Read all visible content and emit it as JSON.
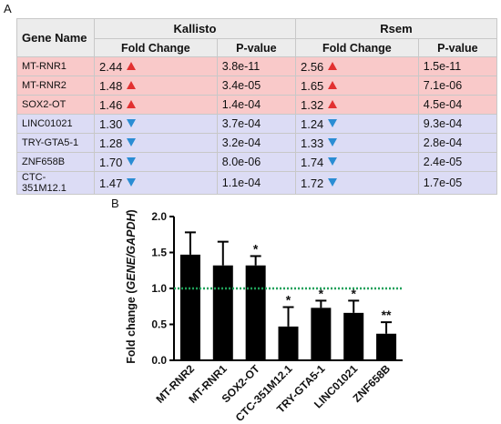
{
  "panel_a": {
    "label": "A",
    "headers": {
      "gene_name": "Gene Name",
      "group1": "Kallisto",
      "group2": "Rsem",
      "fold_change": "Fold Change",
      "p_value": "P-value"
    },
    "rows": [
      {
        "gene": "MT-RNR1",
        "k_fc": "2.44",
        "k_dir": "up",
        "k_p": "3.8e-11",
        "r_fc": "2.56",
        "r_dir": "up",
        "r_p": "1.5e-11"
      },
      {
        "gene": "MT-RNR2",
        "k_fc": "1.48",
        "k_dir": "up",
        "k_p": "3.4e-05",
        "r_fc": "1.65",
        "r_dir": "up",
        "r_p": "7.1e-06"
      },
      {
        "gene": "SOX2-OT",
        "k_fc": "1.46",
        "k_dir": "up",
        "k_p": "1.4e-04",
        "r_fc": "1.32",
        "r_dir": "up",
        "r_p": "4.5e-04"
      },
      {
        "gene": "LINC01021",
        "k_fc": "1.30",
        "k_dir": "down",
        "k_p": "3.7e-04",
        "r_fc": "1.24",
        "r_dir": "down",
        "r_p": "9.3e-04"
      },
      {
        "gene": "TRY-GTA5-1",
        "k_fc": "1.28",
        "k_dir": "down",
        "k_p": "3.2e-04",
        "r_fc": "1.33",
        "r_dir": "down",
        "r_p": "2.8e-04"
      },
      {
        "gene": "ZNF658B",
        "k_fc": "1.70",
        "k_dir": "down",
        "k_p": "8.0e-06",
        "r_fc": "1.74",
        "r_dir": "down",
        "r_p": "2.4e-05"
      },
      {
        "gene": "CTC-351M12.1",
        "k_fc": "1.47",
        "k_dir": "down",
        "k_p": "1.1e-04",
        "r_fc": "1.72",
        "r_dir": "down",
        "r_p": "1.7e-05"
      }
    ],
    "colors": {
      "up_row": "#f9c9c9",
      "down_row": "#dcdcf5",
      "up_arrow": "#e23030",
      "down_arrow": "#2a8dd4"
    }
  },
  "panel_b": {
    "label": "B"
  },
  "chart_data": {
    "type": "bar",
    "ylabel_prefix": "Fold change (",
    "ylabel_italic": "GENE/GAPDH",
    "ylabel_suffix": ")",
    "ylim": [
      0,
      2.0
    ],
    "yticks": [
      "0.0",
      "0.5",
      "1.0",
      "1.5",
      "2.0"
    ],
    "reference_line": 1.0,
    "reference_line_color": "#1fa05a",
    "bar_color": "#000000",
    "categories": [
      "MT-RNR2",
      "MT-RNR1",
      "SOX2-OT",
      "CTC-351M12.1",
      "TRY-GTA5-1",
      "LINC01021",
      "ZNF658B"
    ],
    "values": [
      1.47,
      1.32,
      1.32,
      0.47,
      0.73,
      0.66,
      0.37
    ],
    "errors": [
      0.31,
      0.33,
      0.13,
      0.27,
      0.1,
      0.17,
      0.16
    ],
    "significance": [
      "",
      "",
      "*",
      "*",
      "*",
      "*",
      "**"
    ]
  }
}
